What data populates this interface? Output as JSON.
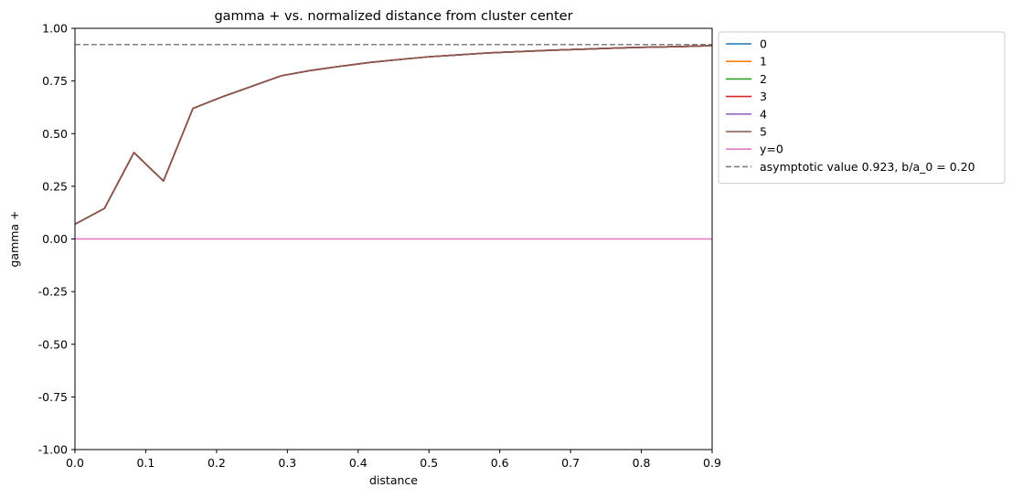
{
  "chart_data": {
    "type": "line",
    "title": "gamma + vs. normalized distance from cluster center",
    "xlabel": "distance",
    "ylabel": "gamma +",
    "xlim": [
      0.0,
      0.9
    ],
    "ylim": [
      -1.0,
      1.0
    ],
    "xticks": [
      "0.0",
      "0.1",
      "0.2",
      "0.3",
      "0.4",
      "0.5",
      "0.6",
      "0.7",
      "0.8",
      "0.9"
    ],
    "yticks": [
      "-1.00",
      "-0.75",
      "-0.50",
      "-0.25",
      "0.00",
      "0.25",
      "0.50",
      "0.75",
      "1.00"
    ],
    "x": [
      0.0,
      0.0417,
      0.0833,
      0.125,
      0.1667,
      0.2083,
      0.25,
      0.2917,
      0.3333,
      0.375,
      0.4167,
      0.4583,
      0.5,
      0.5417,
      0.5833,
      0.625,
      0.6667,
      0.7083,
      0.75,
      0.7917,
      0.8333,
      0.875,
      0.9
    ],
    "series": [
      {
        "name": "0",
        "color": "#1f77b4",
        "style": "solid",
        "values": [
          0.07,
          0.145,
          0.41,
          0.275,
          0.62,
          0.675,
          0.725,
          0.775,
          0.8,
          0.82,
          0.838,
          0.852,
          0.865,
          0.874,
          0.883,
          0.889,
          0.895,
          0.9,
          0.905,
          0.909,
          0.912,
          0.915,
          0.918
        ]
      },
      {
        "name": "1",
        "color": "#ff7f0e",
        "style": "solid",
        "values": [
          0.07,
          0.145,
          0.41,
          0.275,
          0.62,
          0.675,
          0.725,
          0.775,
          0.8,
          0.82,
          0.838,
          0.852,
          0.865,
          0.874,
          0.883,
          0.889,
          0.895,
          0.9,
          0.905,
          0.909,
          0.912,
          0.915,
          0.918
        ]
      },
      {
        "name": "2",
        "color": "#2ca02c",
        "style": "solid",
        "values": [
          0.07,
          0.145,
          0.41,
          0.275,
          0.62,
          0.675,
          0.725,
          0.775,
          0.8,
          0.82,
          0.838,
          0.852,
          0.865,
          0.874,
          0.883,
          0.889,
          0.895,
          0.9,
          0.905,
          0.909,
          0.912,
          0.915,
          0.918
        ]
      },
      {
        "name": "3",
        "color": "#d62728",
        "style": "solid",
        "values": [
          0.07,
          0.145,
          0.41,
          0.275,
          0.62,
          0.675,
          0.725,
          0.775,
          0.8,
          0.82,
          0.838,
          0.852,
          0.865,
          0.874,
          0.883,
          0.889,
          0.895,
          0.9,
          0.905,
          0.909,
          0.912,
          0.915,
          0.918
        ]
      },
      {
        "name": "4",
        "color": "#9467bd",
        "style": "solid",
        "values": [
          0.07,
          0.145,
          0.41,
          0.275,
          0.62,
          0.675,
          0.725,
          0.775,
          0.8,
          0.82,
          0.838,
          0.852,
          0.865,
          0.874,
          0.883,
          0.889,
          0.895,
          0.9,
          0.905,
          0.909,
          0.912,
          0.915,
          0.918
        ]
      },
      {
        "name": "5",
        "color": "#8c564b",
        "style": "solid",
        "values": [
          0.07,
          0.145,
          0.41,
          0.275,
          0.62,
          0.675,
          0.725,
          0.775,
          0.8,
          0.82,
          0.838,
          0.852,
          0.865,
          0.874,
          0.883,
          0.889,
          0.895,
          0.9,
          0.905,
          0.909,
          0.912,
          0.915,
          0.918
        ]
      }
    ],
    "reference_lines": [
      {
        "name": "y=0",
        "y": 0.0,
        "color": "#e377c2",
        "style": "solid"
      },
      {
        "name": "asymptotic value 0.923, b/a_0 = 0.20",
        "y": 0.923,
        "color": "#7f7f7f",
        "style": "dashed"
      }
    ],
    "legend": {
      "placement": "outside-upper-right",
      "entries": [
        "0",
        "1",
        "2",
        "3",
        "4",
        "5",
        "y=0",
        "asymptotic value 0.923, b/a_0 = 0.20"
      ]
    },
    "grid": false
  }
}
